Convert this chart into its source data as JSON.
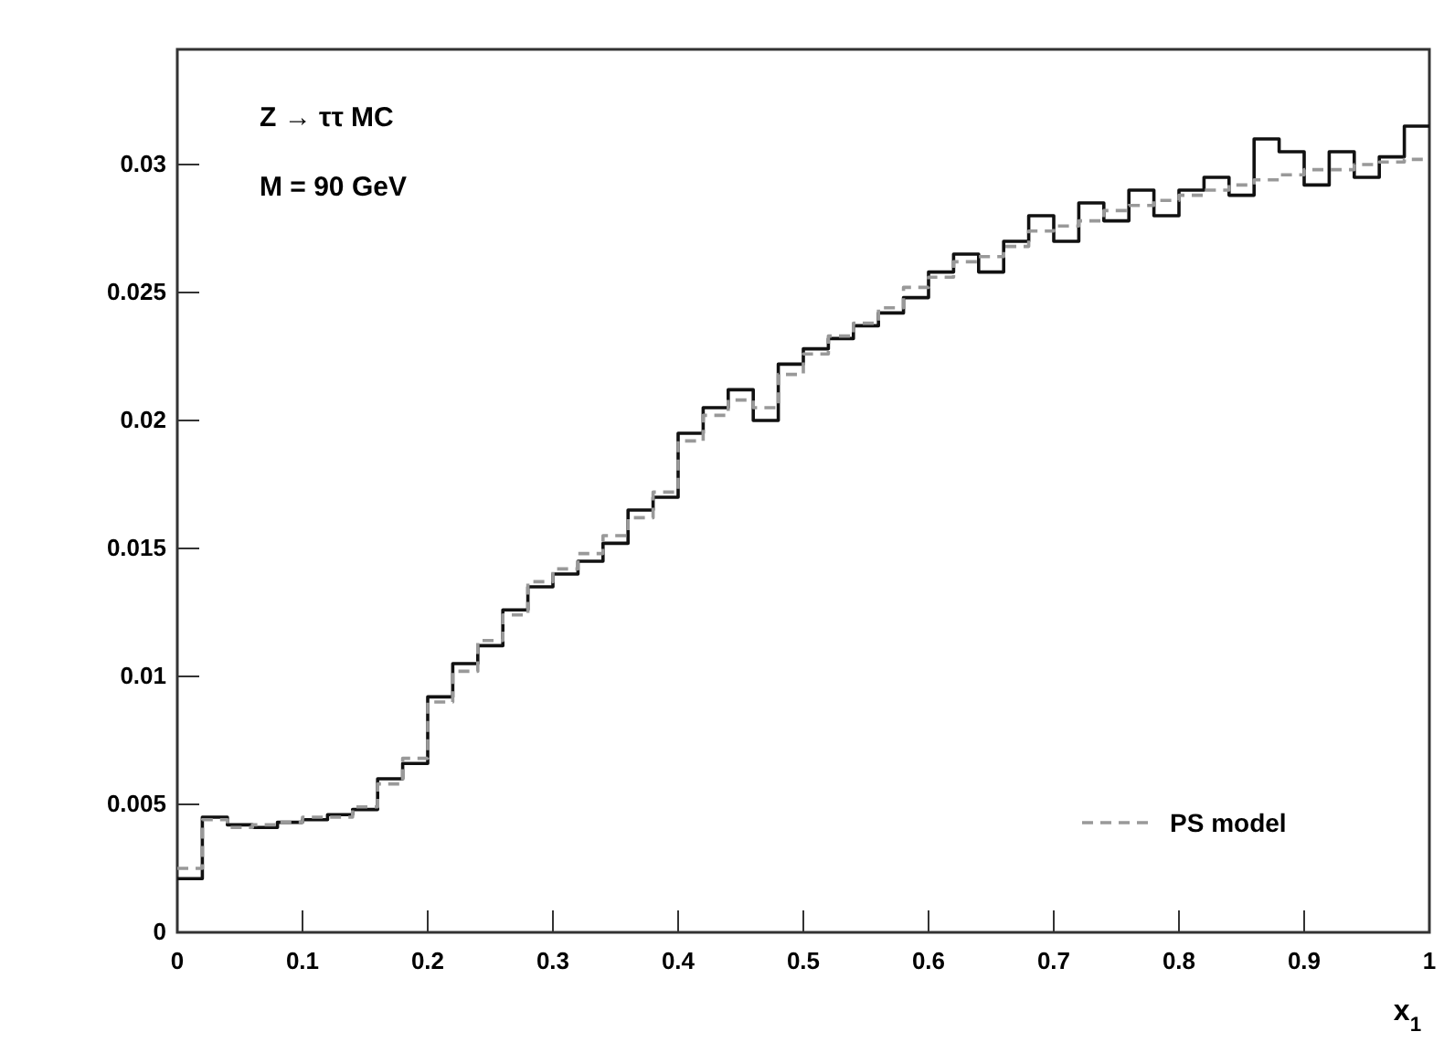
{
  "chart_data": {
    "type": "histogram",
    "xlabel": "x$_{1}$",
    "annotations": [
      "Z → ττ MC",
      "M = 90 GeV"
    ],
    "bins": [
      0,
      0.02,
      0.04,
      0.06,
      0.08,
      0.1,
      0.12,
      0.14,
      0.16,
      0.18,
      0.2,
      0.22,
      0.24,
      0.26,
      0.28,
      0.3,
      0.32,
      0.34,
      0.36,
      0.38,
      0.4,
      0.42,
      0.44,
      0.46,
      0.48,
      0.5,
      0.52,
      0.54,
      0.56,
      0.58,
      0.6,
      0.62,
      0.64,
      0.66,
      0.68,
      0.7,
      0.72,
      0.74,
      0.76,
      0.78,
      0.8,
      0.82,
      0.84,
      0.86,
      0.88,
      0.9,
      0.92,
      0.94,
      0.96,
      0.98,
      1
    ],
    "series": [
      {
        "color": "#111111",
        "line_style": "solid",
        "values": [
          0.0021,
          0.0045,
          0.0042,
          0.0041,
          0.0043,
          0.0044,
          0.0046,
          0.0048,
          0.006,
          0.0066,
          0.0092,
          0.0105,
          0.0112,
          0.0126,
          0.0135,
          0.014,
          0.0145,
          0.0152,
          0.0165,
          0.017,
          0.0195,
          0.0205,
          0.0212,
          0.02,
          0.0222,
          0.0228,
          0.0232,
          0.0237,
          0.0242,
          0.0248,
          0.0258,
          0.0265,
          0.0258,
          0.027,
          0.028,
          0.027,
          0.0285,
          0.0278,
          0.029,
          0.028,
          0.029,
          0.0295,
          0.0288,
          0.031,
          0.0305,
          0.0292,
          0.0305,
          0.0295,
          0.0303,
          0.0315
        ]
      },
      {
        "name": "PS model",
        "color": "#999999",
        "line_style": "dashed",
        "values": [
          0.0025,
          0.0044,
          0.0041,
          0.0042,
          0.0043,
          0.0045,
          0.0045,
          0.0049,
          0.0058,
          0.0068,
          0.009,
          0.0102,
          0.0114,
          0.0124,
          0.0137,
          0.0142,
          0.0148,
          0.0155,
          0.0162,
          0.0172,
          0.0192,
          0.0202,
          0.0208,
          0.0205,
          0.0218,
          0.0226,
          0.0233,
          0.0238,
          0.0244,
          0.0252,
          0.0256,
          0.0262,
          0.0264,
          0.0268,
          0.0274,
          0.0276,
          0.0278,
          0.0282,
          0.0284,
          0.0286,
          0.0288,
          0.029,
          0.0292,
          0.0294,
          0.0296,
          0.0298,
          0.0298,
          0.03,
          0.0301,
          0.0302
        ]
      }
    ],
    "xlim": [
      0,
      1
    ],
    "xticks": [
      0,
      0.1,
      0.2,
      0.3,
      0.4,
      0.5,
      0.6,
      0.7,
      0.8,
      0.9,
      1
    ],
    "ylim": [
      0,
      0.0345
    ],
    "yticks": [
      0,
      0.005,
      0.01,
      0.015,
      0.02,
      0.025,
      0.03
    ],
    "legend": "bottom right"
  }
}
